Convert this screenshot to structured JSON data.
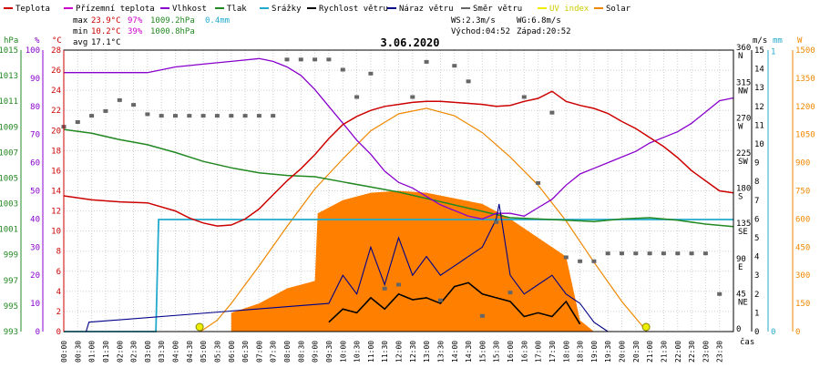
{
  "chart_data": {
    "type": "line",
    "title": "3.06.2020",
    "legend": [
      {
        "label": "Teplota",
        "color": "#cc0000"
      },
      {
        "label": "Přízemní teplota",
        "color": "#cc00cc"
      },
      {
        "label": "Vlhkost",
        "color": "#8800cc"
      },
      {
        "label": "Tlak",
        "color": "#228822"
      },
      {
        "label": "Srážky",
        "color": "#22aacc"
      },
      {
        "label": "Rychlost větru",
        "color": "#000000"
      },
      {
        "label": "Náraz větru",
        "color": "#000088"
      },
      {
        "label": "Směr větru",
        "color": "#666666"
      },
      {
        "label": "UV index",
        "color": "#eeee00"
      },
      {
        "label": "Solar",
        "color": "#ee8800"
      }
    ],
    "stats": {
      "max_label": "max",
      "max_temp": "23.9°C",
      "max_hum": "97%",
      "max_press": "1009.2hPa",
      "rain": "0.4mm",
      "min_label": "min",
      "min_temp": "10.2°C",
      "min_hum": "39%",
      "min_press": "1000.8hPa",
      "avg_label": "avg",
      "avg_temp": "17.1°C",
      "ws": "WS:2.3m/s",
      "wg": "WG:6.8m/s",
      "sunrise": "Východ:04:52",
      "sunset": "Západ:20:52"
    },
    "axes": {
      "hpa_label": "hPa",
      "pct_label": "%",
      "c_label": "°C",
      "ms_label": "m/s",
      "mm_label": "mm",
      "w_label": "W",
      "x_label": "čas",
      "hpa_ticks": [
        "993",
        "995",
        "997",
        "999",
        "1001",
        "1003",
        "1005",
        "1007",
        "1009",
        "1011",
        "1013",
        "1015"
      ],
      "pct_ticks": [
        "0",
        "10",
        "20",
        "30",
        "40",
        "50",
        "60",
        "70",
        "80",
        "90",
        "100"
      ],
      "c_ticks": [
        "0",
        "2",
        "4",
        "6",
        "8",
        "10",
        "12",
        "14",
        "16",
        "18",
        "20",
        "22",
        "24",
        "26",
        "28"
      ],
      "dir_ticks": [
        "0",
        "45 NE",
        "90 E",
        "135 SE",
        "180 S",
        "225 SW",
        "270 W",
        "315 NW",
        "360 N"
      ],
      "ms_ticks": [
        "0",
        "1",
        "2",
        "3",
        "4",
        "5",
        "6",
        "7",
        "8",
        "9",
        "10",
        "11",
        "12",
        "13",
        "14",
        "15"
      ],
      "mm_ticks": [
        "0",
        "1"
      ],
      "w_ticks": [
        "0",
        "150",
        "300",
        "450",
        "600",
        "750",
        "900",
        "1050",
        "1200",
        "1350",
        "1500"
      ],
      "x_ticks": [
        "00:00",
        "00:30",
        "01:00",
        "01:30",
        "02:00",
        "02:30",
        "03:00",
        "03:30",
        "04:00",
        "04:30",
        "05:00",
        "05:30",
        "06:00",
        "06:30",
        "07:00",
        "07:30",
        "08:00",
        "08:30",
        "09:00",
        "09:30",
        "10:00",
        "10:30",
        "11:00",
        "11:30",
        "12:00",
        "12:30",
        "13:00",
        "13:30",
        "14:00",
        "14:30",
        "15:00",
        "15:30",
        "16:00",
        "16:30",
        "17:00",
        "17:30",
        "18:00",
        "18:30",
        "19:00",
        "19:30",
        "20:00",
        "20:30",
        "21:00",
        "21:30",
        "22:00",
        "22:30",
        "23:00",
        "23:30"
      ]
    },
    "x_range_hours": [
      0,
      24
    ],
    "temperature_c": {
      "hours": [
        0,
        1,
        2,
        3,
        4,
        4.5,
        5,
        5.5,
        6,
        6.5,
        7,
        7.5,
        8,
        8.5,
        9,
        9.5,
        10,
        10.5,
        11,
        11.5,
        12,
        12.5,
        13,
        13.5,
        14,
        14.5,
        15,
        15.5,
        16,
        16.5,
        17,
        17.5,
        18,
        18.5,
        19,
        19.5,
        20,
        20.5,
        21,
        21.5,
        22,
        22.5,
        23,
        23.5,
        24
      ],
      "values": [
        13.5,
        13.1,
        12.9,
        12.8,
        12.0,
        11.3,
        10.8,
        10.5,
        10.6,
        11.2,
        12.2,
        13.6,
        15.0,
        16.2,
        17.6,
        19.2,
        20.6,
        21.4,
        22.0,
        22.4,
        22.6,
        22.8,
        22.9,
        22.9,
        22.8,
        22.7,
        22.6,
        22.4,
        22.5,
        22.9,
        23.2,
        23.9,
        22.9,
        22.5,
        22.2,
        21.7,
        20.9,
        20.2,
        19.3,
        18.4,
        17.3,
        16.0,
        15.0,
        14.0,
        13.8
      ]
    },
    "humidity_pct": {
      "hours": [
        0,
        1,
        2,
        3,
        4,
        5,
        6,
        7,
        7.5,
        8,
        8.5,
        9,
        9.5,
        10,
        10.5,
        11,
        11.5,
        12,
        12.5,
        13,
        13.5,
        14,
        14.5,
        15,
        15.5,
        16,
        16.5,
        17,
        17.5,
        18,
        18.5,
        19,
        19.5,
        20,
        20.5,
        21,
        21.5,
        22,
        22.5,
        23,
        23.5,
        24
      ],
      "values": [
        92,
        92,
        92,
        92,
        94,
        95,
        96,
        97,
        96,
        94,
        91,
        86,
        80,
        74,
        68,
        63,
        57,
        53,
        51,
        48,
        45,
        43,
        41,
        40,
        42,
        42,
        41,
        44,
        47,
        52,
        56,
        58,
        60,
        62,
        64,
        67,
        69,
        71,
        74,
        78,
        82,
        83
      ]
    },
    "pressure_hpa": {
      "hours": [
        0,
        1,
        2,
        3,
        4,
        5,
        6,
        7,
        8,
        9,
        10,
        11,
        12,
        13,
        14,
        15,
        16,
        17,
        18,
        19,
        20,
        21,
        22,
        23,
        24
      ],
      "values": [
        1008.8,
        1008.5,
        1008.0,
        1007.6,
        1007.0,
        1006.3,
        1005.8,
        1005.4,
        1005.2,
        1005.1,
        1004.7,
        1004.3,
        1003.9,
        1003.4,
        1002.9,
        1002.4,
        1001.9,
        1001.8,
        1001.7,
        1001.6,
        1001.8,
        1001.9,
        1001.7,
        1001.4,
        1001.2
      ]
    },
    "rain_mm": {
      "hours": [
        0,
        3.3,
        3.4,
        24
      ],
      "values": [
        0,
        0,
        0.4,
        0.4
      ]
    },
    "solar_w": {
      "hours": [
        4.9,
        5.5,
        6,
        7,
        8,
        9,
        10,
        11,
        12,
        13,
        14,
        15,
        16,
        17,
        18,
        19,
        20,
        20.9
      ],
      "values": [
        0,
        60,
        150,
        350,
        560,
        760,
        920,
        1070,
        1160,
        1190,
        1150,
        1060,
        930,
        780,
        590,
        370,
        160,
        0
      ]
    },
    "solar_measured_w": {
      "hours": [
        6,
        7,
        8,
        9,
        9.1,
        10,
        11,
        12,
        13,
        14,
        15,
        16,
        17,
        18,
        18.5,
        19
      ],
      "values": [
        100,
        150,
        230,
        270,
        630,
        700,
        740,
        750,
        740,
        710,
        680,
        600,
        500,
        400,
        60,
        0
      ]
    },
    "wind_speed_ms": {
      "hours": [
        9.5,
        10,
        10.5,
        11,
        11.5,
        12,
        12.5,
        13,
        13.5,
        14,
        14.5,
        15,
        15.5,
        16,
        16.5,
        17,
        17.5,
        18,
        18.5
      ],
      "values": [
        0.5,
        1.2,
        1.0,
        1.8,
        1.2,
        2.0,
        1.7,
        1.8,
        1.5,
        2.4,
        2.6,
        2.0,
        1.8,
        1.6,
        0.8,
        1.0,
        0.8,
        1.6,
        0.4
      ]
    },
    "wind_gust_ms": {
      "hours": [
        0.8,
        0.9,
        9.5,
        10,
        10.5,
        11,
        11.5,
        12,
        12.5,
        13,
        13.5,
        14,
        14.5,
        15,
        15.5,
        15.6,
        16,
        16.5,
        17,
        17.5,
        18,
        18.5,
        19,
        19.5
      ],
      "values": [
        0,
        0.5,
        1.5,
        3.0,
        2.0,
        4.5,
        2.5,
        5.0,
        3.0,
        4.0,
        3.0,
        3.5,
        4.0,
        4.5,
        6.0,
        6.8,
        3.0,
        2.0,
        2.5,
        3.0,
        2.0,
        1.5,
        0.5,
        0
      ]
    },
    "wind_dir_deg": {
      "hours": [
        0,
        0.5,
        1,
        1.5,
        2,
        2.5,
        3,
        3.5,
        4,
        4.5,
        5,
        5.5,
        6,
        6.5,
        7,
        7.5,
        8,
        8.5,
        9,
        9.5,
        10,
        10.5,
        11,
        11.5,
        12,
        12.5,
        13,
        13.5,
        14,
        14.5,
        15,
        15.5,
        16,
        16.5,
        17,
        17.5,
        18,
        18.5,
        19,
        19.5,
        20,
        20.5,
        21,
        21.5,
        22,
        22.5,
        23,
        23.5
      ],
      "values": [
        262,
        268,
        276,
        282,
        296,
        290,
        278,
        276,
        276,
        276,
        276,
        276,
        276,
        276,
        276,
        276,
        348,
        348,
        348,
        348,
        335,
        300,
        330,
        55,
        60,
        300,
        345,
        40,
        340,
        320,
        20,
        140,
        50,
        300,
        190,
        280,
        95,
        90,
        90,
        100,
        100,
        100,
        100,
        100,
        100,
        100,
        100,
        48
      ]
    },
    "sun_markers_hours": [
      4.87,
      20.87
    ]
  }
}
